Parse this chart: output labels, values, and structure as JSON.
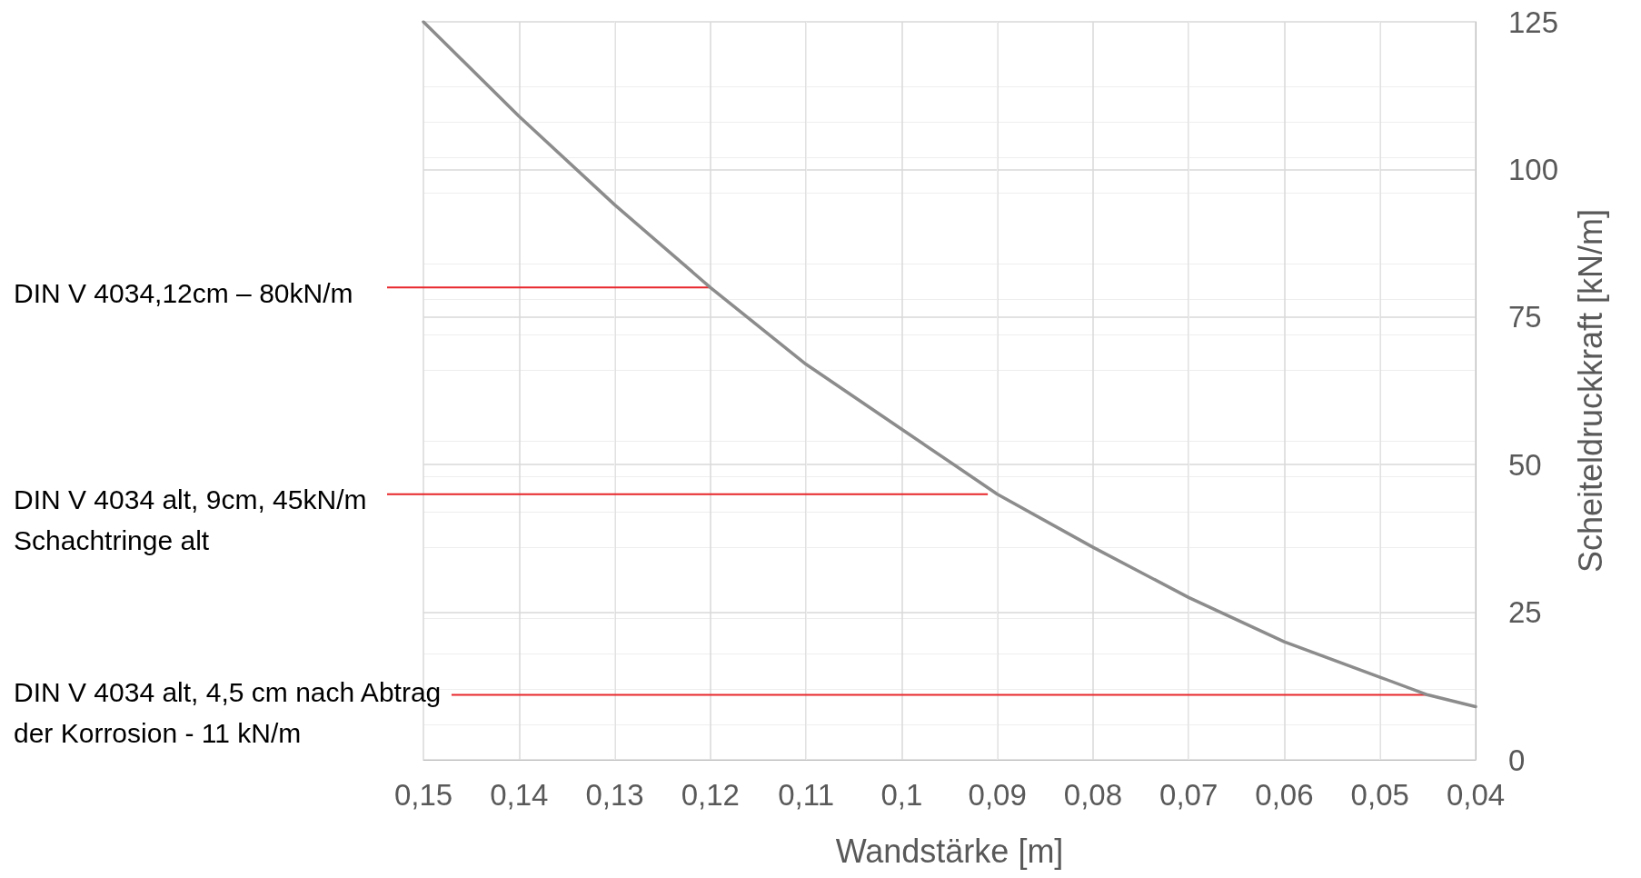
{
  "chart_data": {
    "type": "line",
    "xlabel": "Wandstärke [m]",
    "ylabel": "Scheiteldruckkraft [kN/m]",
    "x": [
      0.15,
      0.14,
      0.13,
      0.12,
      0.11,
      0.1,
      0.09,
      0.08,
      0.07,
      0.06,
      0.05,
      0.045,
      0.04
    ],
    "series": [
      {
        "color": "#8c8c8c",
        "values": [
          125,
          109,
          94,
          80,
          67,
          56,
          45,
          36,
          27.5,
          20,
          14,
          11,
          9
        ]
      }
    ],
    "xlim": [
      0.15,
      0.04
    ],
    "xticks": [
      {
        "value": 0.15,
        "label": "0,15"
      },
      {
        "value": 0.14,
        "label": "0,14"
      },
      {
        "value": 0.13,
        "label": "0,13"
      },
      {
        "value": 0.12,
        "label": "0,12"
      },
      {
        "value": 0.11,
        "label": "0,11"
      },
      {
        "value": 0.1,
        "label": "0,1"
      },
      {
        "value": 0.09,
        "label": "0,09"
      },
      {
        "value": 0.08,
        "label": "0,08"
      },
      {
        "value": 0.07,
        "label": "0,07"
      },
      {
        "value": 0.06,
        "label": "0,06"
      },
      {
        "value": 0.05,
        "label": "0,05"
      },
      {
        "value": 0.04,
        "label": "0,04"
      }
    ],
    "ylim": [
      0,
      125
    ],
    "yticks": [
      0,
      25,
      50,
      75,
      100,
      125
    ],
    "grid": true,
    "marker": "none",
    "line_style": "solid",
    "annotations": [
      {
        "text": "DIN V 4034,12cm – 80kN/m",
        "x": 0.12,
        "y": 80
      },
      {
        "text": "DIN V 4034 alt, 9cm, 45kN/m\nSchachtringe alt",
        "x": 0.091,
        "y": 45
      },
      {
        "text": "DIN V 4034 alt, 4,5 cm nach Abtrag\nder Korrosion - 11 kN/m",
        "x": 0.045,
        "y": 11
      }
    ]
  }
}
